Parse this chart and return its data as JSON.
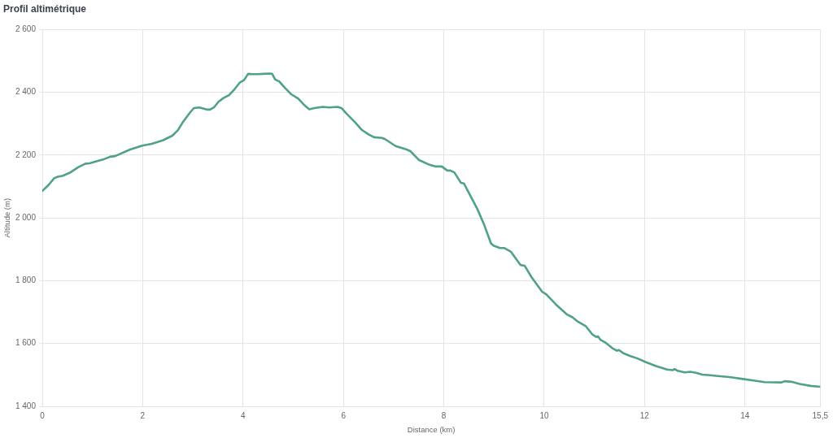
{
  "chart_data": {
    "type": "line",
    "title": "Profil altimétrique",
    "xlabel": "Distance (km)",
    "ylabel": "Altitude (m)",
    "x": [
      0,
      0.13,
      0.24,
      0.32,
      0.4,
      0.56,
      0.72,
      0.86,
      0.94,
      1.05,
      1.21,
      1.35,
      1.45,
      1.75,
      1.99,
      2.18,
      2.4,
      2.59,
      2.7,
      2.8,
      2.88,
      2.94,
      3.02,
      3.13,
      3.29,
      3.34,
      3.42,
      3.51,
      3.61,
      3.72,
      3.83,
      3.94,
      4.02,
      4.1,
      4.18,
      4.3,
      4.4,
      4.53,
      4.58,
      4.64,
      4.72,
      4.83,
      4.96,
      5.1,
      5.21,
      5.32,
      5.42,
      5.59,
      5.72,
      5.88,
      5.96,
      6.07,
      6.23,
      6.37,
      6.5,
      6.61,
      6.77,
      6.83,
      7.04,
      7.26,
      7.34,
      7.5,
      7.69,
      7.83,
      7.96,
      8.07,
      8.13,
      8.21,
      8.34,
      8.4,
      8.5,
      8.67,
      8.8,
      8.94,
      8.99,
      9.12,
      9.21,
      9.34,
      9.53,
      9.61,
      9.75,
      9.96,
      10.04,
      10.15,
      10.23,
      10.45,
      10.56,
      10.66,
      10.83,
      10.96,
      11.04,
      11.07,
      11.12,
      11.23,
      11.37,
      11.45,
      11.49,
      11.58,
      11.72,
      11.85,
      12.02,
      12.23,
      12.45,
      12.56,
      12.6,
      12.66,
      12.8,
      12.91,
      13.04,
      13.15,
      13.31,
      13.42,
      13.69,
      13.96,
      14.23,
      14.39,
      14.72,
      14.8,
      14.93,
      15.09,
      15.31,
      15.5
    ],
    "series": [
      {
        "color": "#4fa282",
        "values": [
          2086,
          2106,
          2127,
          2132,
          2134,
          2145,
          2162,
          2173,
          2174,
          2179,
          2186,
          2195,
          2197,
          2218,
          2230,
          2236,
          2247,
          2262,
          2279,
          2305,
          2322,
          2335,
          2350,
          2352,
          2345,
          2345,
          2352,
          2370,
          2382,
          2391,
          2410,
          2432,
          2439,
          2459,
          2458,
          2458,
          2459,
          2460,
          2459,
          2441,
          2435,
          2415,
          2394,
          2380,
          2361,
          2346,
          2350,
          2354,
          2352,
          2354,
          2350,
          2331,
          2305,
          2280,
          2266,
          2257,
          2255,
          2251,
          2229,
          2218,
          2212,
          2185,
          2171,
          2164,
          2164,
          2151,
          2151,
          2145,
          2112,
          2110,
          2080,
          2028,
          1980,
          1919,
          1912,
          1904,
          1904,
          1892,
          1850,
          1848,
          1811,
          1765,
          1757,
          1739,
          1725,
          1693,
          1684,
          1671,
          1655,
          1629,
          1621,
          1623,
          1612,
          1602,
          1584,
          1577,
          1579,
          1569,
          1560,
          1553,
          1541,
          1528,
          1517,
          1515,
          1519,
          1513,
          1508,
          1510,
          1506,
          1501,
          1499,
          1497,
          1493,
          1487,
          1481,
          1477,
          1476,
          1480,
          1478,
          1471,
          1465,
          1462
        ]
      }
    ],
    "xlim": [
      0,
      15.5
    ],
    "xticks": [
      0,
      2,
      4,
      6,
      8,
      10,
      12,
      14,
      {
        "value": 15.5,
        "label": "15,5"
      }
    ],
    "ylim": [
      1400,
      2600
    ],
    "yticks": [
      {
        "value": 1400,
        "label": "1 400"
      },
      {
        "value": 1600,
        "label": "1 600"
      },
      {
        "value": 1800,
        "label": "1 800"
      },
      {
        "value": 2000,
        "label": "2 000"
      },
      {
        "value": 2200,
        "label": "2 200"
      },
      {
        "value": 2400,
        "label": "2 400"
      },
      {
        "value": 2600,
        "label": "2 600"
      }
    ],
    "grid": true
  }
}
